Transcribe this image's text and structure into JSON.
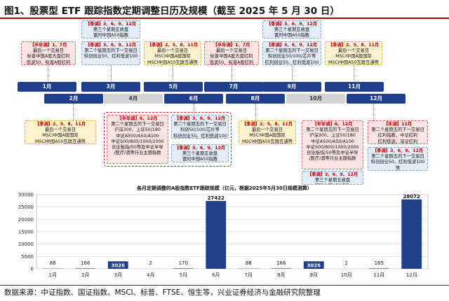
{
  "figure_title": "图1、股票型 ETF 跟踪指数定期调整日历及规模（截至 2025 年 5 月 30 日）",
  "months": [
    "1月",
    "2月",
    "3月",
    "4月",
    "5月",
    "6月",
    "7月",
    "8月",
    "9月",
    "10月",
    "11月",
    "12月"
  ],
  "boxes": {
    "jan": {
      "head": "【半年调】1、7月",
      "lines": [
        "最后一个交易日",
        "标普中国A股大盘红利",
        "低波50、标普A股红利"
      ]
    },
    "mar": {
      "head": "【季调】3、6、9、12月",
      "lines": [
        "第二个星期五的下一交易日",
        "科创创业50、红利低波100"
      ]
    },
    "may": {
      "head": "【季调】2、5、8、11月",
      "lines": [
        "最后一个交易日",
        "MSCI中国A股国际",
        "MSCI中国A50互联互通等"
      ]
    },
    "jul": {
      "head": "【半年调】1、7月",
      "lines": [
        "最后一个交易日",
        "标普中国A股大盘红利",
        "低波50、标普A股红利"
      ]
    },
    "sep_top": {
      "head": "【季调】3、6、9、12月",
      "lines": [
        "第三个星期五收盘",
        "富时中国A50指数"
      ]
    },
    "sep": {
      "head": "【季调】3、6、9、12月",
      "lines": [
        "第二个星期五的下一交易日",
        "科创创业50/100/芯片等",
        "红利创业50、红利低波100"
      ]
    },
    "nov": {
      "head": "【季调】2、5、8、11月",
      "lines": [
        "最后一个交易日",
        "MSCI中国A股国际",
        "MSCI中国A50互联互通等"
      ]
    },
    "feb": {
      "head": "【季调】2、5、8、11月",
      "lines": [
        "最后一个交易日",
        "MSCI中国A股国际",
        "MSCI中国A50互联互通等"
      ]
    },
    "jun_a": {
      "head": "【半年调】6、12月",
      "lines": [
        "第二个星期五的下一交易日",
        "沪深300、上证50/180",
        "中证A500/A50/A100",
        "中证500/800/1000/2000",
        "创业板指/50等及中证半导",
        "/医疗/酒等行业主题指数"
      ]
    },
    "jun_b": {
      "head": "【季调】3、6、9、12月",
      "lines": [
        "第二个星期五的下一交易日",
        "科创50/100/芯片等",
        "科创创业50、红利低波100"
      ]
    },
    "jun_c": {
      "head": "【季调】3、6、9、12月",
      "lines": [
        "第三个星期五收盘",
        "富时中国A50指数"
      ]
    },
    "aug": {
      "head": "【季调】2、5、8、11月",
      "lines": [
        "最后一个交易日",
        "MSCI中国A股国际",
        "MSCI中国A50互联互通等"
      ]
    },
    "dec_a": {
      "head": "【半年调】6、12月",
      "lines": [
        "第二个星期五的下一交易日",
        "沪深300、上证50/180",
        "中证A500/A50/A100",
        "中证500/800/1000/2000",
        "创业板指/50等及中证半导",
        "/医疗/酒等行业主题指数"
      ]
    },
    "dec_b": {
      "head": "【季调】3、6、9、12月",
      "lines": [
        "第二个星期五的下一交易日",
        "科创50/100/芯片等",
        "科创创业50、红利低波100"
      ]
    },
    "dec_c": {
      "head": "【季调】3、6、9、12月",
      "lines": [
        "第三个星期五收盘",
        "富时中国A50指数"
      ]
    },
    "dec_r1": {
      "head": "【年调】12月",
      "lines": [
        "第二个星期五的下一交易日",
        "红利指数、中证红利",
        "红利低波、深证红利"
      ]
    },
    "dec_r2": {
      "head": "【季调】3、6、9、12月",
      "lines": [
        "第二个星期五的下一交易日",
        "科创创业50、红利低波100",
        "等"
      ]
    }
  },
  "chart_data": {
    "type": "bar",
    "title": "各月定期调整的A股指数ETF跟踪规模（亿元，根据2025年5月30日规模测算）",
    "categories": [
      "1月",
      "2月",
      "3月",
      "4月",
      "5月",
      "6月",
      "7月",
      "8月",
      "9月",
      "10月",
      "11月",
      "12月"
    ],
    "values": [
      86,
      166,
      3026,
      2,
      170,
      27422,
      88,
      166,
      3026,
      2,
      165,
      28072
    ],
    "ylim": [
      0,
      30000
    ],
    "yticks": [
      0,
      5000,
      10000,
      15000,
      20000,
      25000,
      30000
    ],
    "grid": true,
    "bar_color": "#1f3f8c"
  },
  "source": "数据来源：中证指数、国证指数、MSCI、标普、FTSE、恒生等，兴业证券经济与金融研究院整理"
}
